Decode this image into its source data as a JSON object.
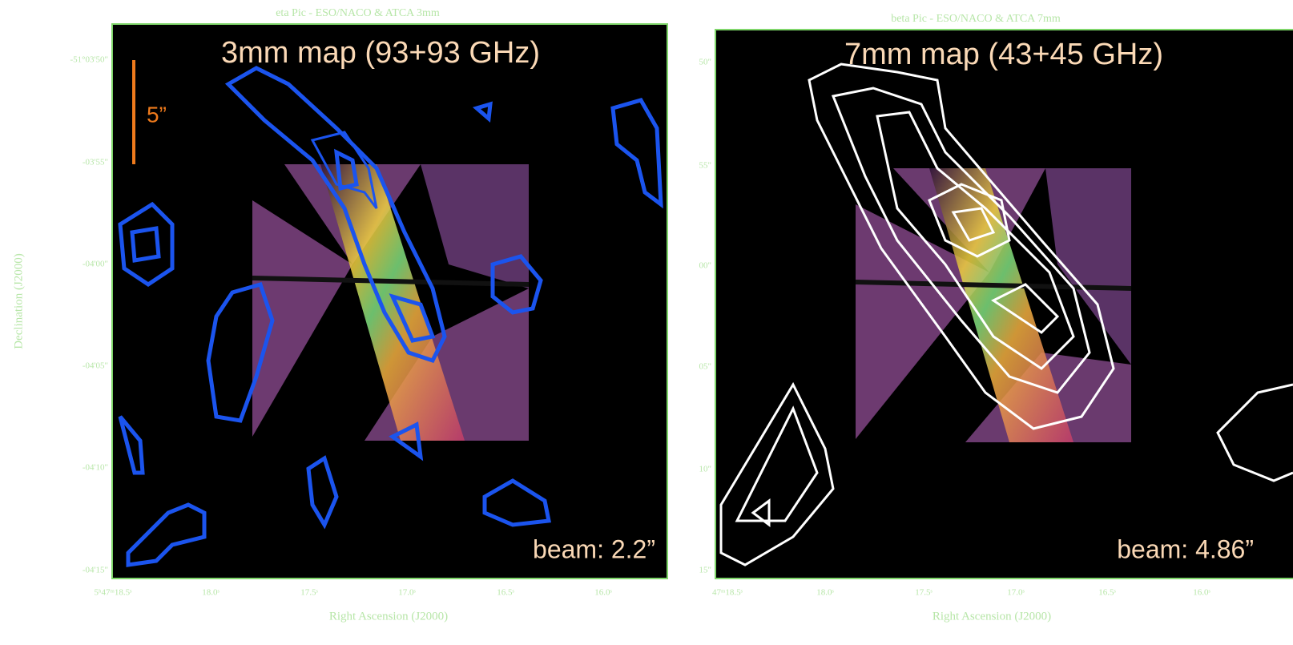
{
  "panels": [
    {
      "title": "eta Pic - ESO/NACO & ATCA 3mm",
      "map_label": "3mm map (93+93 GHz)",
      "scale_label": "5”",
      "beam_label": "beam: 2.2”",
      "y_axis_label": "Declination (J2000)",
      "x_axis_label": "Right Ascension (J2000)",
      "yticks": [
        "-51°03'50\"",
        "-03'55\"",
        "-04'00\"",
        "-04'05\"",
        "-04'10\"",
        "-04'15\""
      ],
      "xticks": [
        "5ʰ47ᵐ18.5ˢ",
        "18.0ˢ",
        "17.5ˢ",
        "17.0ˢ",
        "16.5ˢ",
        "16.0ˢ"
      ]
    },
    {
      "title": "beta Pic - ESO/NACO & ATCA 7mm",
      "map_label": "7mm map (43+45 GHz)",
      "beam_label": "beam: 4.86”",
      "x_axis_label": "Right Ascension (J2000)",
      "yticks": [
        "50\"",
        "55\"",
        "00\"",
        "05\"",
        "10\"",
        "15\""
      ],
      "xticks": [
        "47ᵐ18.5ˢ",
        "18.0ˢ",
        "17.5ˢ",
        "17.0ˢ",
        "16.5ˢ",
        "16.0ˢ"
      ]
    }
  ]
}
